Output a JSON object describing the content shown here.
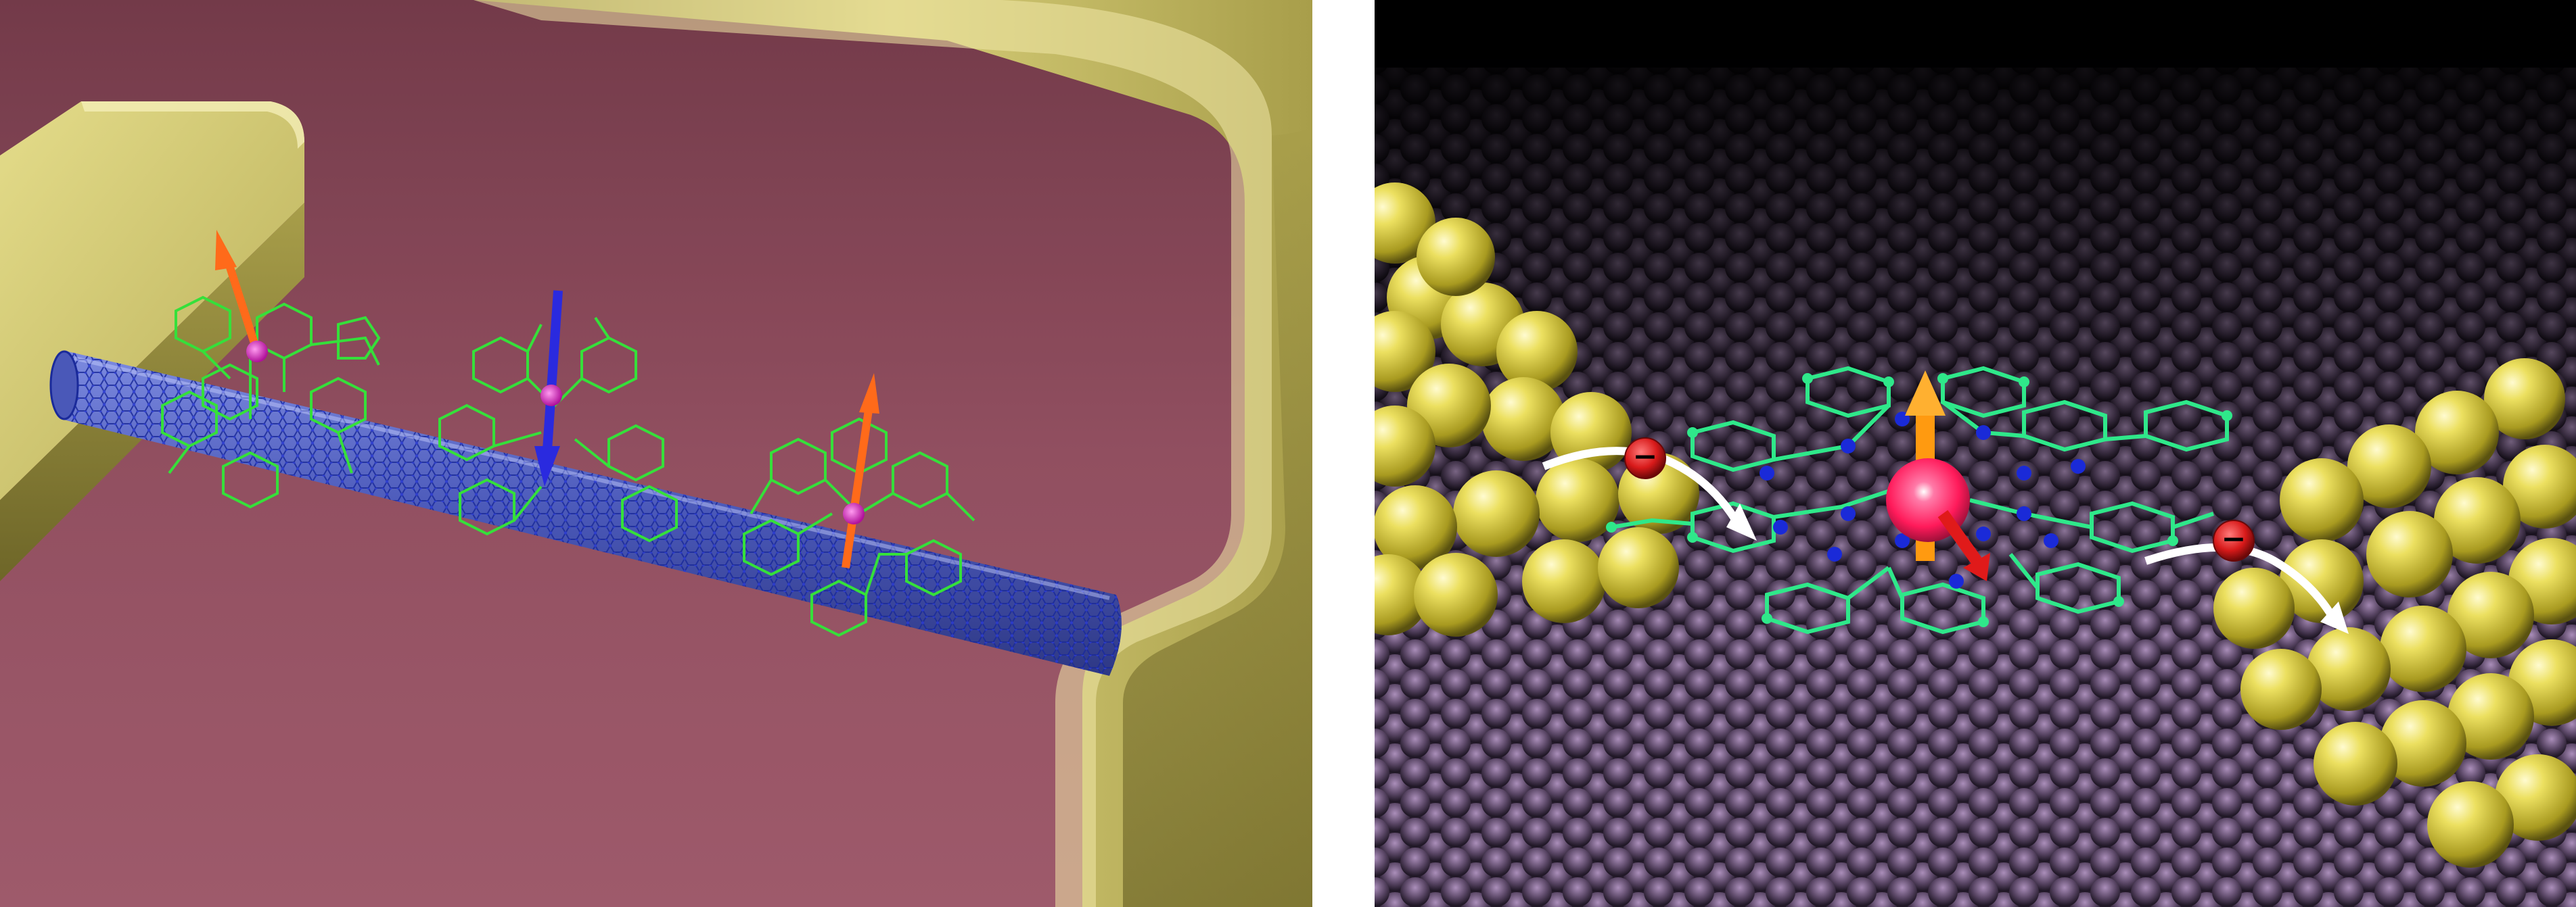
{
  "figure": {
    "panels": [
      {
        "id": "left",
        "subject": "molecular-spin-transistor-nanotube-device",
        "colors": {
          "substrate": "#9a5466",
          "electrode": "#c9c06a",
          "nanotube": "#5a6fd0",
          "molecule": "#35e03a",
          "spin_up": "#ff6a1a",
          "spin_down": "#2a2adf",
          "ion": "#e020c0"
        },
        "spins": [
          "up",
          "down",
          "up"
        ]
      },
      {
        "id": "right",
        "subject": "single-molecule-magnet-between-gold-electrodes",
        "colors": {
          "substrate": "#2a2030",
          "substrate_bump": "#8a6f9a",
          "gold_atom": "#e6d84a",
          "molecule": "#2fe88a",
          "nitrogen": "#1a2ad8",
          "ion": "#ff2a6a",
          "spin_arrow": "#ff9a10",
          "magnetization_arrow": "#e01a1a",
          "electron": "#d81a1a",
          "electron_path": "#ffffff"
        },
        "electron_symbol": "−"
      }
    ]
  }
}
